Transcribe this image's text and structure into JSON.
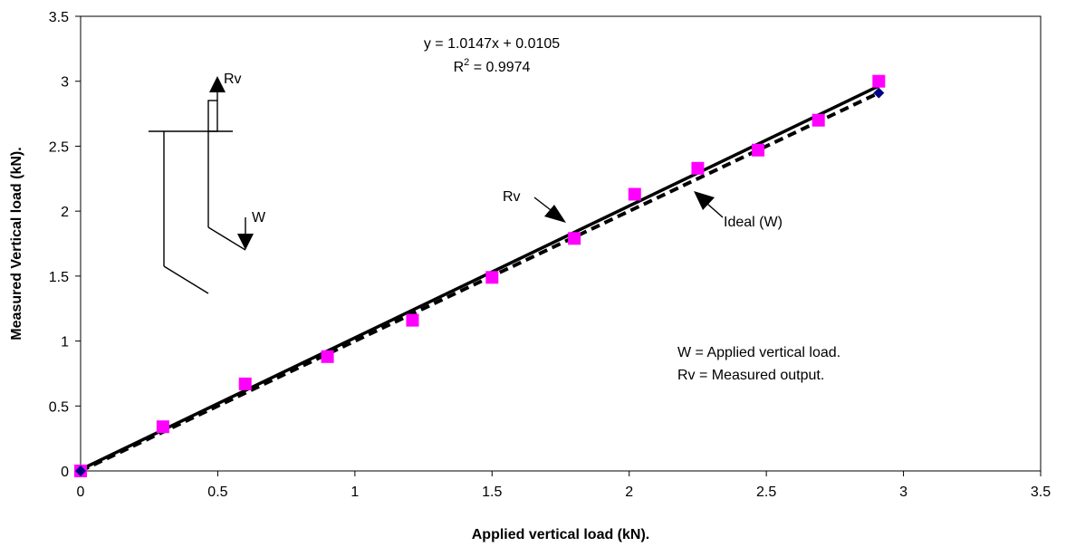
{
  "chart_data": {
    "type": "scatter",
    "title": "",
    "xlabel": "Applied vertical load (kN).",
    "ylabel": "Measured Vertical load (kN).",
    "xlim": [
      0,
      3.5
    ],
    "ylim": [
      0,
      3.5
    ],
    "x_ticks": [
      0,
      0.5,
      1,
      1.5,
      2,
      2.5,
      3,
      3.5
    ],
    "y_ticks": [
      0,
      0.5,
      1,
      1.5,
      2,
      2.5,
      3,
      3.5
    ],
    "x_tick_labels": [
      "0",
      "0.5",
      "1",
      "1.5",
      "2",
      "2.5",
      "3",
      "3.5"
    ],
    "y_tick_labels": [
      "0",
      "0.5",
      "1",
      "1.5",
      "2",
      "2.5",
      "3",
      "3.5"
    ],
    "grid": false,
    "legend": "none",
    "series": [
      {
        "name": "Rv",
        "marker": "square",
        "color": "#ff00ff",
        "x": [
          0,
          0.3,
          0.6,
          0.9,
          1.21,
          1.5,
          1.8,
          2.02,
          2.25,
          2.47,
          2.69,
          2.91
        ],
        "y": [
          0,
          0.34,
          0.67,
          0.88,
          1.16,
          1.49,
          1.79,
          2.13,
          2.33,
          2.47,
          2.7,
          3.0
        ]
      },
      {
        "name": "Ideal (W)",
        "marker": "diamond",
        "color": "#000080",
        "x": [
          0,
          2.91
        ],
        "y": [
          0,
          2.91
        ]
      }
    ],
    "trendline": {
      "slope": 1.0147,
      "intercept": 0.0105,
      "style": "solid",
      "color": "#000000",
      "x_range": [
        0,
        2.91
      ]
    },
    "ideal_line": {
      "style": "dashed",
      "color": "#000000",
      "x_range": [
        0,
        2.91
      ]
    },
    "annotations": {
      "equation": "y = 1.0147x + 0.0105",
      "r2_prefix": "R",
      "r2_sup": "2",
      "r2_suffix": " = 0.9974",
      "rv_arrow_label": "Rv",
      "ideal_arrow_label": "Ideal (W)",
      "diagram_rv_label": "Rv",
      "diagram_w_label": "W",
      "legend_line_1": "W = Applied vertical load.",
      "legend_line_2": "Rv = Measured output."
    }
  }
}
